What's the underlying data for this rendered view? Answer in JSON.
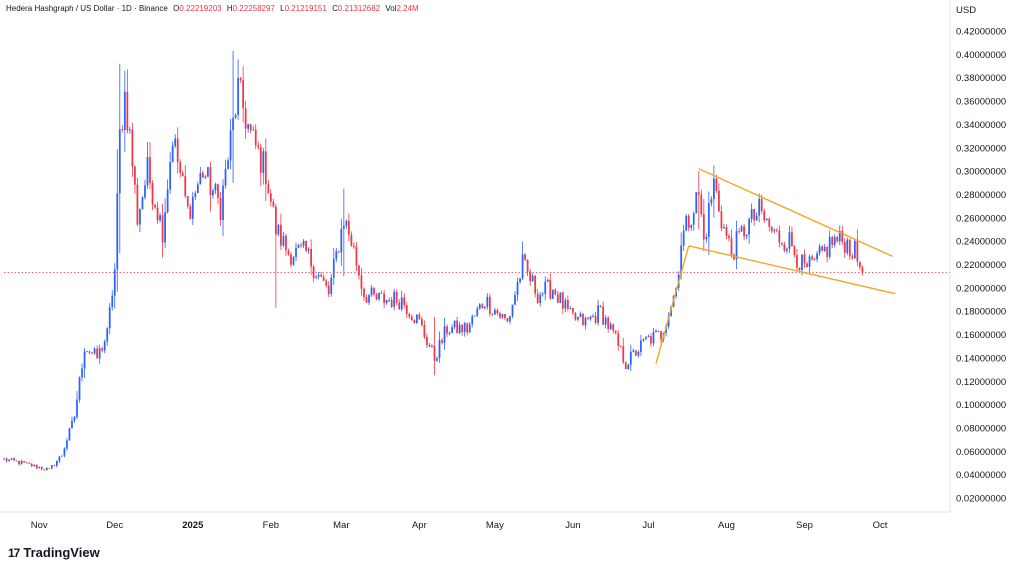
{
  "header": {
    "symbol": "Hedera Hashgraph / US Dollar · 1D · Binance",
    "o_label": "O",
    "o": "0.22219203",
    "h_label": "H",
    "h": "0.22258297",
    "l_label": "L",
    "l": "0.21219151",
    "c_label": "C",
    "c": "0.21312682",
    "vol_label": "Vol",
    "vol": "2.24M"
  },
  "brand": {
    "logo": "17",
    "name": "TradingView"
  },
  "colors": {
    "up": "#2962ff",
    "down": "#f23645",
    "pattern": "#f5a623",
    "last_price_line": "#f23645"
  },
  "chart_data": {
    "type": "candlestick",
    "currency_label": "USD",
    "y_ticks": [
      "0.42000000",
      "0.40000000",
      "0.38000000",
      "0.36000000",
      "0.34000000",
      "0.32000000",
      "0.30000000",
      "0.28000000",
      "0.26000000",
      "0.24000000",
      "0.22000000",
      "0.20000000",
      "0.18000000",
      "0.16000000",
      "0.14000000",
      "0.12000000",
      "0.10000000",
      "0.08000000",
      "0.06000000",
      "0.04000000",
      "0.02000000"
    ],
    "ylim": [
      0.02,
      0.42
    ],
    "x_ticks": [
      {
        "label": "Nov",
        "date": "2024-11-01",
        "bold": false
      },
      {
        "label": "Dec",
        "date": "2024-12-01",
        "bold": false
      },
      {
        "label": "2025",
        "date": "2025-01-01",
        "bold": true
      },
      {
        "label": "Feb",
        "date": "2025-02-01",
        "bold": false
      },
      {
        "label": "Mar",
        "date": "2025-03-01",
        "bold": false
      },
      {
        "label": "Apr",
        "date": "2025-04-01",
        "bold": false
      },
      {
        "label": "May",
        "date": "2025-05-01",
        "bold": false
      },
      {
        "label": "Jun",
        "date": "2025-06-01",
        "bold": false
      },
      {
        "label": "Jul",
        "date": "2025-07-01",
        "bold": false
      },
      {
        "label": "Aug",
        "date": "2025-08-01",
        "bold": false
      },
      {
        "label": "Sep",
        "date": "2025-09-01",
        "bold": false
      },
      {
        "label": "Oct",
        "date": "2025-10-01",
        "bold": false
      }
    ],
    "last_price": 0.21312682,
    "close_series": {
      "start_date": "2024-10-18",
      "end_date": "2025-09-24",
      "keypoints": [
        [
          "2024-10-18",
          0.053
        ],
        [
          "2024-10-25",
          0.05
        ],
        [
          "2024-11-05",
          0.044
        ],
        [
          "2024-11-10",
          0.057
        ],
        [
          "2024-11-15",
          0.09
        ],
        [
          "2024-11-19",
          0.15
        ],
        [
          "2024-11-24",
          0.14
        ],
        [
          "2024-11-28",
          0.16
        ],
        [
          "2024-12-01",
          0.215
        ],
        [
          "2024-12-03",
          0.33
        ],
        [
          "2024-12-05",
          0.365
        ],
        [
          "2024-12-07",
          0.33
        ],
        [
          "2024-12-10",
          0.26
        ],
        [
          "2024-12-14",
          0.3
        ],
        [
          "2024-12-20",
          0.25
        ],
        [
          "2024-12-24",
          0.33
        ],
        [
          "2024-12-30",
          0.265
        ],
        [
          "2025-01-05",
          0.3
        ],
        [
          "2025-01-12",
          0.27
        ],
        [
          "2025-01-17",
          0.34
        ],
        [
          "2025-01-19",
          0.37
        ],
        [
          "2025-01-24",
          0.33
        ],
        [
          "2025-01-30",
          0.3
        ],
        [
          "2025-02-03",
          0.25
        ],
        [
          "2025-02-08",
          0.23
        ],
        [
          "2025-02-15",
          0.23
        ],
        [
          "2025-02-24",
          0.195
        ],
        [
          "2025-03-02",
          0.26
        ],
        [
          "2025-03-05",
          0.24
        ],
        [
          "2025-03-10",
          0.195
        ],
        [
          "2025-03-15",
          0.19
        ],
        [
          "2025-03-25",
          0.19
        ],
        [
          "2025-04-01",
          0.17
        ],
        [
          "2025-04-07",
          0.14
        ],
        [
          "2025-04-12",
          0.165
        ],
        [
          "2025-04-20",
          0.165
        ],
        [
          "2025-04-27",
          0.19
        ],
        [
          "2025-05-06",
          0.17
        ],
        [
          "2025-05-12",
          0.22
        ],
        [
          "2025-05-18",
          0.195
        ],
        [
          "2025-05-24",
          0.2
        ],
        [
          "2025-05-31",
          0.175
        ],
        [
          "2025-06-06",
          0.17
        ],
        [
          "2025-06-12",
          0.18
        ],
        [
          "2025-06-17",
          0.16
        ],
        [
          "2025-06-22",
          0.135
        ],
        [
          "2025-06-30",
          0.155
        ],
        [
          "2025-07-06",
          0.16
        ],
        [
          "2025-07-12",
          0.2
        ],
        [
          "2025-07-14",
          0.24
        ],
        [
          "2025-07-18",
          0.265
        ],
        [
          "2025-07-21",
          0.28
        ],
        [
          "2025-07-23",
          0.24
        ],
        [
          "2025-07-27",
          0.29
        ],
        [
          "2025-07-31",
          0.25
        ],
        [
          "2025-08-03",
          0.23
        ],
        [
          "2025-08-08",
          0.25
        ],
        [
          "2025-08-14",
          0.265
        ],
        [
          "2025-08-20",
          0.245
        ],
        [
          "2025-08-26",
          0.24
        ],
        [
          "2025-09-01",
          0.215
        ],
        [
          "2025-09-05",
          0.22
        ],
        [
          "2025-09-12",
          0.24
        ],
        [
          "2025-09-17",
          0.24
        ],
        [
          "2025-09-21",
          0.23
        ],
        [
          "2025-09-24",
          0.213
        ]
      ]
    },
    "wicks_notable": [
      {
        "date": "2024-12-03",
        "high": 0.392,
        "low": 0.23
      },
      {
        "date": "2025-01-17",
        "high": 0.403,
        "low": 0.29
      },
      {
        "date": "2025-02-03",
        "high": 0.26,
        "low": 0.183
      },
      {
        "date": "2025-03-02",
        "high": 0.285,
        "low": 0.21
      },
      {
        "date": "2025-04-07",
        "high": 0.175,
        "low": 0.125
      },
      {
        "date": "2025-07-21",
        "high": 0.3,
        "low": 0.25
      },
      {
        "date": "2025-07-27",
        "high": 0.305,
        "low": 0.26
      }
    ],
    "pattern_lines": [
      {
        "name": "upper",
        "points": [
          [
            "2025-07-21",
            0.302
          ],
          [
            "2025-10-06",
            0.227
          ]
        ]
      },
      {
        "name": "lower",
        "points": [
          [
            "2025-07-17",
            0.236
          ],
          [
            "2025-10-07",
            0.195
          ]
        ]
      },
      {
        "name": "impulse",
        "points": [
          [
            "2025-07-04",
            0.135
          ],
          [
            "2025-07-17",
            0.236
          ]
        ]
      }
    ]
  }
}
